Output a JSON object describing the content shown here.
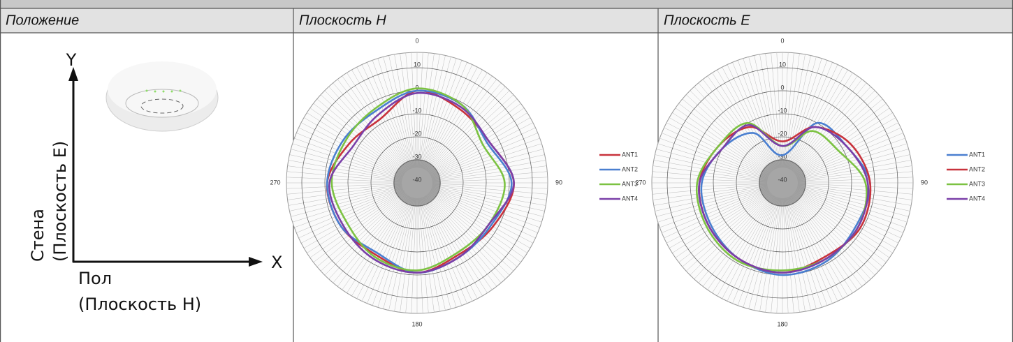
{
  "header": {
    "cells": [
      "Положение",
      "Плоскость H",
      "Плоскость E"
    ]
  },
  "position": {
    "y_axis": "Y",
    "x_axis": "X",
    "wall": "Стена",
    "wall_plane": "(Плоскость E)",
    "floor": "Пол",
    "floor_plane": "(Плоскость H)"
  },
  "chart_data": [
    {
      "type": "polar",
      "theta": [
        0,
        30,
        60,
        90,
        120,
        150,
        180,
        210,
        240,
        270,
        300,
        330
      ],
      "thetaticks": [
        0,
        90,
        180,
        270
      ],
      "rlim": [
        -40,
        10
      ],
      "rticks": [
        10,
        0,
        -10,
        -20,
        -30,
        -40
      ],
      "legend": "right",
      "series": [
        {
          "name": "ANT1",
          "color": "#c8323c",
          "values": [
            0,
            -3,
            -4,
            2,
            -2,
            -4,
            -1,
            -4,
            -2,
            -1,
            -6,
            -8
          ]
        },
        {
          "name": "ANT2",
          "color": "#4a7fd0",
          "values": [
            0,
            -1,
            -5,
            1,
            -3,
            -3,
            -1,
            -5,
            -2,
            -1,
            -3,
            -4
          ]
        },
        {
          "name": "ANT3",
          "color": "#7cc242",
          "values": [
            1,
            -1,
            -7,
            -2,
            -4,
            -5,
            -2,
            -3,
            -5,
            -3,
            -4,
            -3
          ]
        },
        {
          "name": "ANT4",
          "color": "#7a3fa8",
          "values": [
            -1,
            -2,
            -4,
            2,
            -4,
            -3,
            -1,
            -2,
            -3,
            -2,
            -8,
            -6
          ]
        }
      ]
    },
    {
      "type": "polar",
      "theta": [
        0,
        30,
        60,
        90,
        120,
        150,
        180,
        210,
        240,
        270,
        300,
        330
      ],
      "thetaticks": [
        0,
        90,
        180,
        270
      ],
      "rlim": [
        -40,
        10
      ],
      "rticks": [
        10,
        0,
        -10,
        -20,
        -30,
        -40
      ],
      "legend": "right",
      "series": [
        {
          "name": "ANT1",
          "color": "#4a7fd0",
          "values": [
            -28,
            -10,
            -8,
            -2,
            -3,
            -1,
            0,
            -2,
            -4,
            -5,
            -10,
            -15
          ]
        },
        {
          "name": "ANT2",
          "color": "#c8323c",
          "values": [
            -22,
            -12,
            -6,
            -2,
            -1,
            -3,
            -1,
            -2,
            -3,
            -4,
            -8,
            -12
          ]
        },
        {
          "name": "ANT3",
          "color": "#7cc242",
          "values": [
            -24,
            -14,
            -12,
            -4,
            -2,
            -2,
            -2,
            -1,
            -2,
            -3,
            -8,
            -10
          ]
        },
        {
          "name": "ANT4",
          "color": "#7a3fa8",
          "values": [
            -24,
            -12,
            -8,
            -3,
            -2,
            -2,
            -1,
            -2,
            -3,
            -4,
            -10,
            -11
          ]
        }
      ]
    }
  ]
}
